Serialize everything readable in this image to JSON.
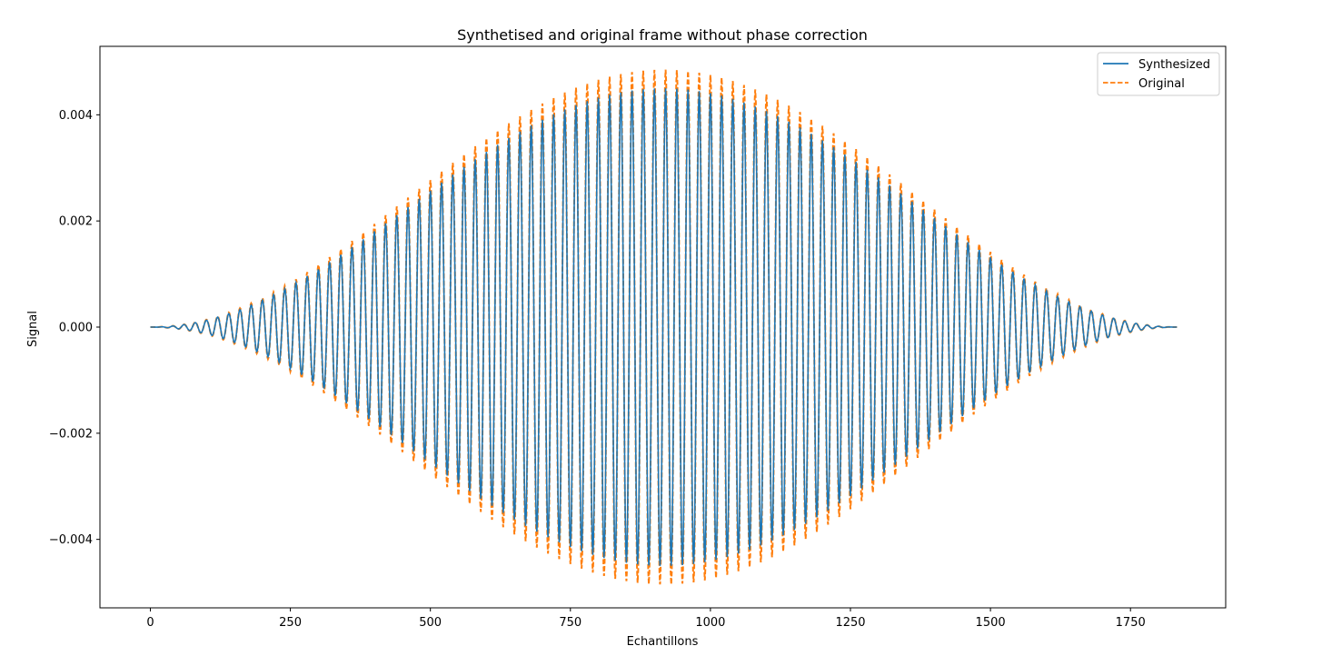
{
  "chart_data": {
    "type": "line",
    "title": "Synthetised and original frame without phase correction",
    "xlabel": "Echantillons",
    "ylabel": "Signal",
    "xlim": [
      -90,
      1920
    ],
    "ylim": [
      -0.00529,
      0.00529
    ],
    "xticks": [
      0,
      250,
      500,
      750,
      1000,
      1250,
      1500,
      1750
    ],
    "xtick_labels": [
      "0",
      "250",
      "500",
      "750",
      "1000",
      "1250",
      "1500",
      "1750"
    ],
    "yticks": [
      -0.004,
      -0.002,
      0.0,
      0.002,
      0.004
    ],
    "ytick_labels": [
      "−0.004",
      "−0.002",
      "0.000",
      "0.002",
      "0.004"
    ],
    "grid": false,
    "legend_position": "top-right",
    "n_samples": 1834,
    "oscillation_period_samples": 20,
    "series": [
      {
        "name": "Synthesized",
        "color": "#1f77b4",
        "style": "solid",
        "peak_amplitude": 0.0045
      },
      {
        "name": "Original",
        "color": "#ff7f0e",
        "style": "dashed",
        "peak_amplitude": 0.00485
      }
    ]
  }
}
